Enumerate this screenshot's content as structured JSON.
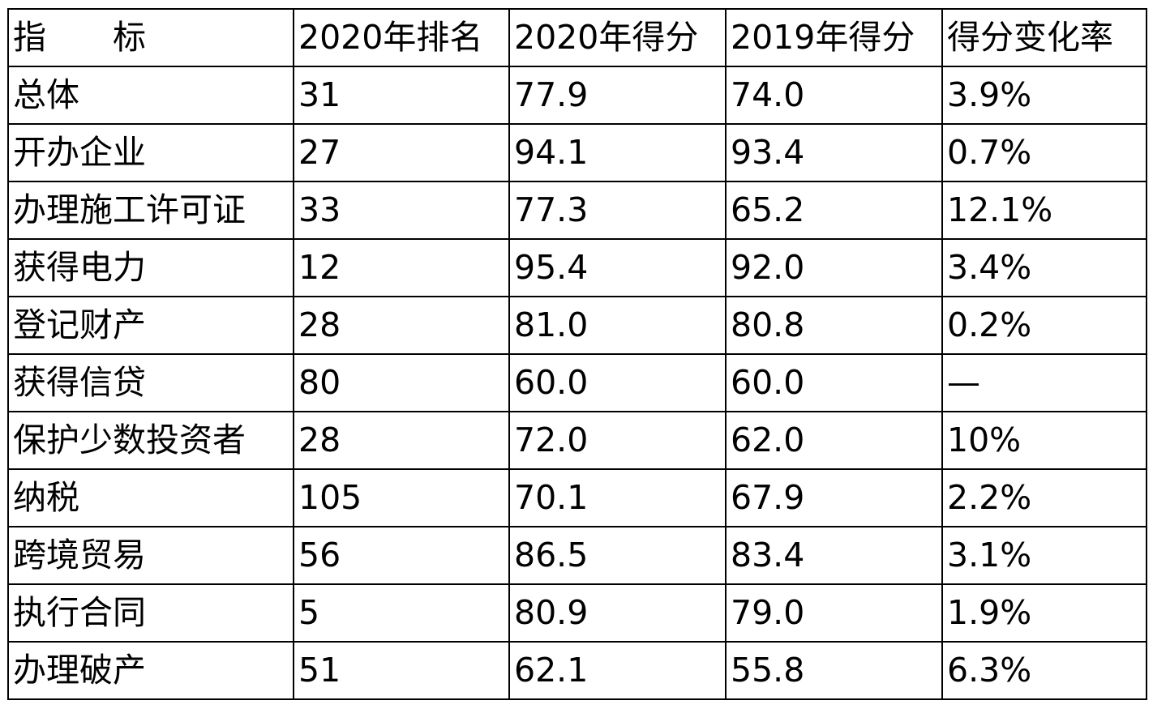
{
  "table": {
    "headers": [
      "指　　标",
      "2020年排名",
      "2020年得分",
      "2019年得分",
      "得分变化率"
    ],
    "rows": [
      [
        "总体",
        "31",
        "77.9",
        "74.0",
        "3.9%"
      ],
      [
        "开办企业",
        "27",
        "94.1",
        "93.4",
        "0.7%"
      ],
      [
        "办理施工许可证",
        "33",
        "77.3",
        "65.2",
        "12.1%"
      ],
      [
        "获得电力",
        "12",
        "95.4",
        "92.0",
        "3.4%"
      ],
      [
        "登记财产",
        "28",
        "81.0",
        "80.8",
        "0.2%"
      ],
      [
        "获得信贷",
        "80",
        "60.0",
        "60.0",
        "—"
      ],
      [
        "保护少数投资者",
        "28",
        "72.0",
        "62.0",
        "10%"
      ],
      [
        "纳税",
        "105",
        "70.1",
        "67.9",
        "2.2%"
      ],
      [
        "跨境贸易",
        "56",
        "86.5",
        "83.4",
        "3.1%"
      ],
      [
        "执行合同",
        "5",
        "80.9",
        "79.0",
        "1.9%"
      ],
      [
        "办理破产",
        "51",
        "62.1",
        "55.8",
        "6.3%"
      ]
    ]
  }
}
